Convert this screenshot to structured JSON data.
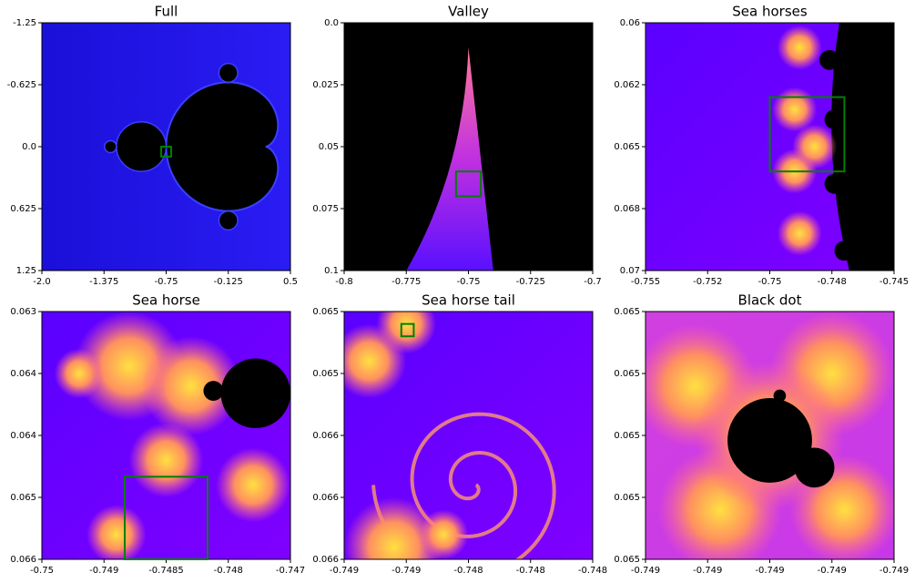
{
  "chart_data": [
    {
      "type": "image",
      "title": "Full",
      "xlim": [
        -2.0,
        0.5
      ],
      "ylim": [
        -1.25,
        1.25
      ],
      "y_inverted": true,
      "xticks": [
        {
          "value": -2.0,
          "label": "-2.0"
        },
        -1.375,
        -0.75,
        -0.125,
        0.5
      ],
      "yticks": [
        -1.25,
        -0.625,
        {
          "value": 0,
          "label": "0.0"
        },
        0.625,
        1.25
      ],
      "zoom_box_color": "#008000"
    },
    {
      "type": "image",
      "title": "Valley",
      "xlim": [
        -0.8,
        -0.7
      ],
      "ylim": [
        0,
        0.1
      ],
      "y_inverted": true,
      "xticks": [
        -0.8,
        -0.775,
        -0.75,
        -0.725,
        -0.7
      ],
      "yticks": [
        {
          "value": 0,
          "label": "0.0"
        },
        0.025,
        0.05,
        0.075,
        0.1
      ],
      "zoom_box_color": "#008000"
    },
    {
      "type": "image",
      "title": "Sea horses",
      "xlim": [
        -0.755,
        -0.745
      ],
      "ylim": [
        0.06,
        0.07
      ],
      "y_inverted": true,
      "xticks": [
        -0.755,
        {
          "value": -0.7525,
          "label": "-0.752"
        },
        -0.75,
        {
          "value": -0.7475,
          "label": "-0.748"
        },
        -0.745
      ],
      "yticks": [
        0.06,
        {
          "value": 0.0625,
          "label": "0.062"
        },
        0.065,
        {
          "value": 0.0675,
          "label": "0.068"
        },
        0.07
      ],
      "zoom_box_color": "#008000"
    },
    {
      "type": "image",
      "title": "Sea horse",
      "xlim": [
        -0.75,
        -0.747
      ],
      "ylim": [
        0.063,
        0.066
      ],
      "y_inverted": true,
      "xticks": [
        -0.75,
        {
          "value": -0.74925,
          "label": "-0.749"
        },
        -0.7485,
        {
          "value": -0.74775,
          "label": "-0.748"
        },
        -0.747
      ],
      "yticks": [
        0.063,
        {
          "value": 0.06375,
          "label": "0.064"
        },
        {
          "value": 0.0645,
          "label": "0.064"
        },
        {
          "value": 0.06525,
          "label": "0.065"
        },
        0.066
      ],
      "zoom_box_color": "#008000"
    },
    {
      "type": "image",
      "title": "Sea horse tail",
      "xlim": [
        -0.749,
        -0.748
      ],
      "ylim": [
        0.065,
        0.066
      ],
      "y_inverted": true,
      "xticks": [
        -0.749,
        {
          "value": -0.74875,
          "label": "-0.749"
        },
        {
          "value": -0.7485,
          "label": "-0.748"
        },
        {
          "value": -0.74825,
          "label": "-0.748"
        },
        -0.748
      ],
      "yticks": [
        0.065,
        {
          "value": 0.06525,
          "label": "0.065"
        },
        {
          "value": 0.0655,
          "label": "0.066"
        },
        {
          "value": 0.06575,
          "label": "0.066"
        },
        0.066
      ],
      "zoom_box_color": "#008000"
    },
    {
      "type": "image",
      "title": "Black dot",
      "xlim": [
        -0.74877,
        -0.74872
      ],
      "ylim": [
        0.06505,
        0.0651
      ],
      "y_inverted": true,
      "xticks": [
        {
          "value": -0.74877,
          "label": "-0.749"
        },
        {
          "value": -0.7487575,
          "label": "-0.749"
        },
        {
          "value": -0.748745,
          "label": "-0.749"
        },
        {
          "value": -0.7487325,
          "label": "-0.749"
        },
        {
          "value": -0.74872,
          "label": "-0.749"
        }
      ],
      "yticks": [
        {
          "value": 0.06505,
          "label": "0.065"
        },
        {
          "value": 0.0650625,
          "label": "0.065"
        },
        {
          "value": 0.065075,
          "label": "0.065"
        },
        {
          "value": 0.0650875,
          "label": "0.065"
        },
        {
          "value": 0.0651,
          "label": "0.065"
        }
      ]
    }
  ]
}
